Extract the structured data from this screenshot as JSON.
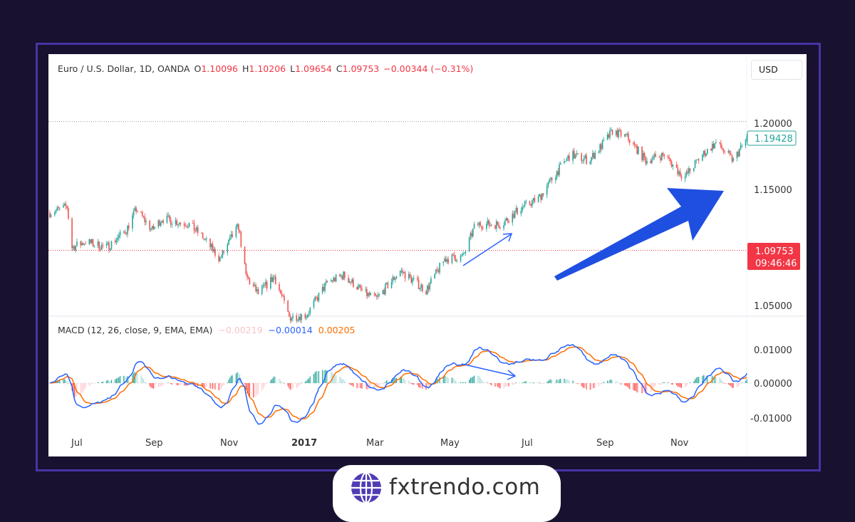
{
  "header": {
    "symbol": "Euro / U.S. Dollar, 1D, OANDA",
    "open_label": "O",
    "open": "1.10096",
    "high_label": "H",
    "high": "1.10206",
    "low_label": "L",
    "low": "1.09654",
    "close_label": "C",
    "close": "1.09753",
    "change": "−0.00344 (−0.31%)",
    "currency_button": "USD"
  },
  "macd_legend": {
    "title": "MACD (12, 26, close, 9, EMA, EMA)",
    "histogram": "−0.00219",
    "macd": "−0.00014",
    "signal": "0.00205"
  },
  "price_scale": {
    "ticks": [
      "1.20000",
      "1.15000",
      "1.05000"
    ],
    "last_price_label": "1.19428",
    "current_price_label": "1.09753",
    "countdown": "09:46:46"
  },
  "macd_scale": {
    "ticks": [
      "0.01000",
      "0.00000",
      "-0.01000"
    ]
  },
  "time_axis": {
    "ticks": [
      "Jul",
      "Sep",
      "Nov",
      "2017",
      "Mar",
      "May",
      "Jul",
      "Sep",
      "Nov"
    ]
  },
  "colors": {
    "up": "#26a69a",
    "down": "#ef5350",
    "macd": "#2962ff",
    "signal": "#ff6d00",
    "arrow": "#1f4fe0",
    "frame": "#4a33a6",
    "background": "#18112f",
    "logo": "#4f3cb5"
  },
  "brand": {
    "text": "fxtrendo.com",
    "icon": "globe-icon"
  },
  "chart_data": {
    "type": "candlestick",
    "symbol": "EURUSD",
    "timeframe": "1D",
    "x_range": [
      "2016-06-09",
      "2017-12-26"
    ],
    "y_range": [
      1.04,
      1.21
    ],
    "approx_closes": [
      [
        "2016-06-09",
        1.13
      ],
      [
        "2016-06-23",
        1.135
      ],
      [
        "2016-06-27",
        1.1
      ],
      [
        "2016-07-08",
        1.105
      ],
      [
        "2016-07-25",
        1.1
      ],
      [
        "2016-08-10",
        1.115
      ],
      [
        "2016-08-18",
        1.133
      ],
      [
        "2016-08-31",
        1.115
      ],
      [
        "2016-09-08",
        1.125
      ],
      [
        "2016-09-30",
        1.12
      ],
      [
        "2016-10-10",
        1.11
      ],
      [
        "2016-10-25",
        1.09
      ],
      [
        "2016-11-04",
        1.11
      ],
      [
        "2016-11-09",
        1.118
      ],
      [
        "2016-11-15",
        1.075
      ],
      [
        "2016-11-25",
        1.06
      ],
      [
        "2016-12-08",
        1.075
      ],
      [
        "2016-12-20",
        1.04
      ],
      [
        "2017-01-03",
        1.042
      ],
      [
        "2017-01-20",
        1.07
      ],
      [
        "2017-02-02",
        1.076
      ],
      [
        "2017-02-20",
        1.06
      ],
      [
        "2017-03-01",
        1.056
      ],
      [
        "2017-03-20",
        1.08
      ],
      [
        "2017-04-10",
        1.063
      ],
      [
        "2017-04-25",
        1.09
      ],
      [
        "2017-05-10",
        1.092
      ],
      [
        "2017-05-20",
        1.12
      ],
      [
        "2017-06-10",
        1.12
      ],
      [
        "2017-06-27",
        1.135
      ],
      [
        "2017-07-10",
        1.142
      ],
      [
        "2017-07-25",
        1.165
      ],
      [
        "2017-08-05",
        1.18
      ],
      [
        "2017-08-20",
        1.175
      ],
      [
        "2017-09-01",
        1.19
      ],
      [
        "2017-09-08",
        1.2
      ],
      [
        "2017-09-20",
        1.195
      ],
      [
        "2017-10-05",
        1.175
      ],
      [
        "2017-10-20",
        1.18
      ],
      [
        "2017-11-05",
        1.16
      ],
      [
        "2017-11-20",
        1.18
      ],
      [
        "2017-12-01",
        1.19
      ],
      [
        "2017-12-15",
        1.175
      ],
      [
        "2017-12-26",
        1.194
      ]
    ],
    "macd_params": {
      "fast": 12,
      "slow": 26,
      "source": "close",
      "signal": 9
    },
    "macd_y_range": [
      -0.013,
      0.014
    ],
    "annotations": [
      "trend arrow up",
      "divergence arrow on price",
      "divergence arrow on MACD"
    ],
    "grid": false
  }
}
